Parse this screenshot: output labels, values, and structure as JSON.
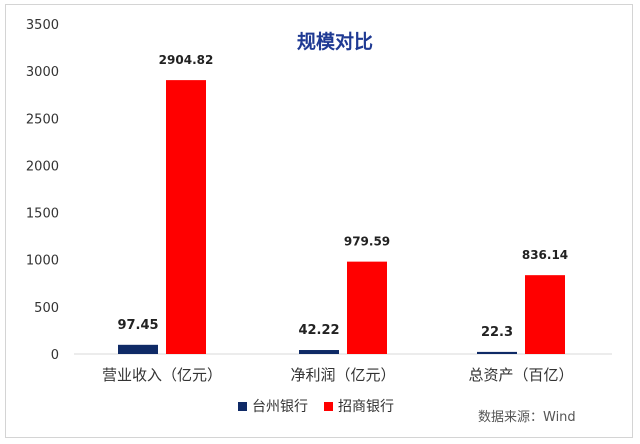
{
  "chart_data": {
    "type": "bar",
    "title": "规模对比",
    "categories": [
      "营业收入（亿元）",
      "净利润（亿元）",
      "总资产（百亿）"
    ],
    "series": [
      {
        "name": "台州银行",
        "color": "#0f2a66",
        "values": [
          97.45,
          42.22,
          22.3
        ]
      },
      {
        "name": "招商银行",
        "color": "#ff0000",
        "values": [
          2904.82,
          979.59,
          836.14
        ]
      }
    ],
    "data_labels": [
      [
        "97.45",
        "42.22",
        "22.3"
      ],
      [
        "2904.82",
        "979.59",
        "836.14"
      ]
    ],
    "yticks": [
      0,
      500,
      1000,
      1500,
      2000,
      2500,
      3000,
      3500
    ],
    "ylim": [
      0,
      3500
    ],
    "grid": false,
    "legend_position": "bottom"
  },
  "source_text": "数据来源：Wind"
}
